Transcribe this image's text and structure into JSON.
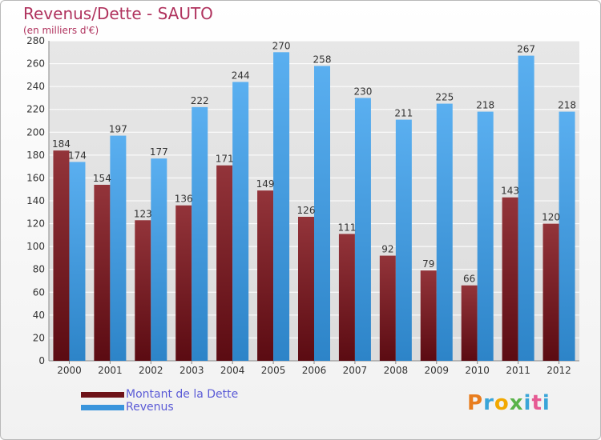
{
  "title": "Revenus/Dette - SAUTO",
  "subtitle": "(en milliers d'€)",
  "colors": {
    "title": "#b0335e",
    "dette": "#7a1c22",
    "revenus": "#3a95dc",
    "legend_text": "#5b5bd6"
  },
  "chart_data": {
    "type": "bar",
    "title": "Revenus/Dette - SAUTO",
    "ylabel": "(en milliers d'€)",
    "xlabel": "",
    "ylim": [
      0,
      280
    ],
    "yticks": [
      0,
      20,
      40,
      60,
      80,
      100,
      120,
      140,
      160,
      180,
      200,
      220,
      240,
      260,
      280
    ],
    "grid": true,
    "legend_position": "bottom-left",
    "categories": [
      "2000",
      "2001",
      "2002",
      "2003",
      "2004",
      "2005",
      "2006",
      "2007",
      "2008",
      "2009",
      "2010",
      "2011",
      "2012"
    ],
    "series": [
      {
        "name": "Montant de la Dette",
        "values": [
          184,
          154,
          123,
          136,
          171,
          149,
          126,
          111,
          92,
          79,
          66,
          143,
          120
        ]
      },
      {
        "name": "Revenus",
        "values": [
          174,
          197,
          177,
          222,
          244,
          270,
          258,
          230,
          211,
          225,
          218,
          267,
          218
        ]
      }
    ]
  },
  "legend": {
    "dette": "Montant de la Dette",
    "revenus": "Revenus"
  },
  "logo": {
    "letters": [
      "P",
      "r",
      "o",
      "x",
      "i",
      "t",
      "i"
    ],
    "colors": [
      "#e87d1e",
      "#3aa5d8",
      "#f2a800",
      "#5ab34a",
      "#3aa5d8",
      "#e65a93",
      "#3aa5d8"
    ]
  }
}
